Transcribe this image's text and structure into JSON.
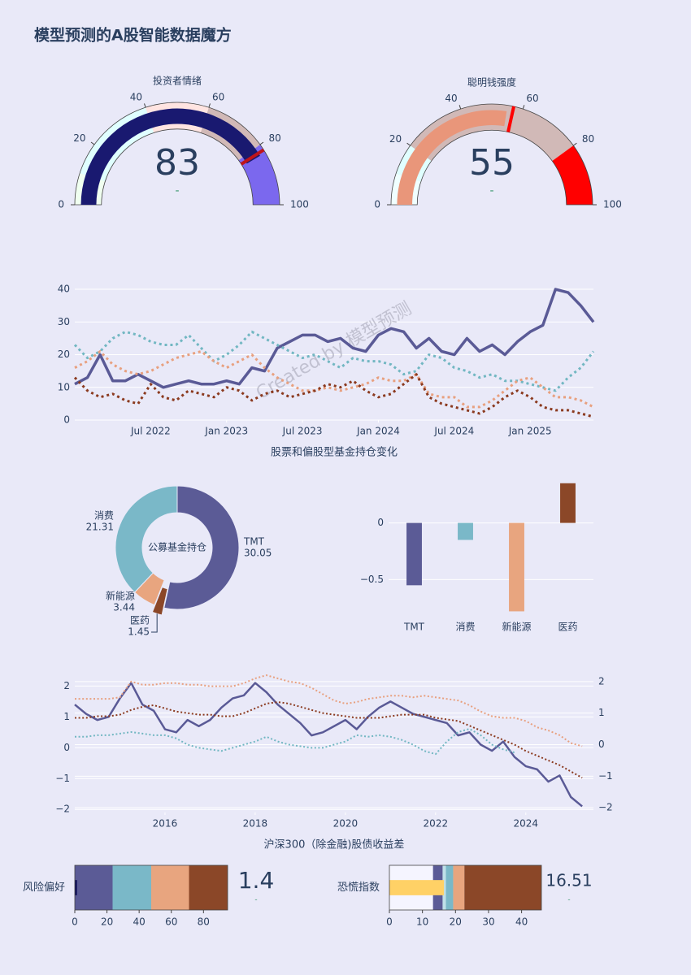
{
  "title": "模型预测的A股智能数据魔方",
  "chart_data": [
    {
      "type": "gauge",
      "title": "投资者情绪",
      "value": 83,
      "delta_label": "-",
      "range": [
        0,
        100
      ],
      "ticks": [
        0,
        20,
        40,
        60,
        80,
        100
      ],
      "bar_color": "#191970",
      "threshold": 82,
      "threshold_color": "#c0141a",
      "steps": [
        {
          "range": [
            0,
            10
          ],
          "color": "#f0fff0"
        },
        {
          "range": [
            10,
            40
          ],
          "color": "#e0ffff"
        },
        {
          "range": [
            40,
            60
          ],
          "color": "#ffe4e1"
        },
        {
          "range": [
            60,
            80
          ],
          "color": "#d1b9b7"
        },
        {
          "range": [
            80,
            100
          ],
          "color": "#7b68ee"
        }
      ]
    },
    {
      "type": "gauge",
      "title": "聪明钱强度",
      "value": 55,
      "delta_label": "-",
      "range": [
        0,
        100
      ],
      "ticks": [
        0,
        20,
        40,
        60,
        80,
        100
      ],
      "bar_color": "#e9967a",
      "threshold": 57,
      "threshold_color": "#ff0000",
      "steps": [
        {
          "range": [
            0,
            10
          ],
          "color": "#f0ffff"
        },
        {
          "range": [
            10,
            20
          ],
          "color": "#e0ffff"
        },
        {
          "range": [
            20,
            80
          ],
          "color": "#d1b9b7"
        },
        {
          "range": [
            80,
            100
          ],
          "color": "#ff0000"
        }
      ]
    },
    {
      "type": "line",
      "xlabel": "股票和偏股型基金持仓变化",
      "watermark": "Created by 模型预测",
      "grid": true,
      "x": [
        "2022-01",
        "2022-02",
        "2022-03",
        "2022-04",
        "2022-05",
        "2022-06",
        "2022-07",
        "2022-08",
        "2022-09",
        "2022-10",
        "2022-11",
        "2022-12",
        "2023-01",
        "2023-02",
        "2023-03",
        "2023-04",
        "2023-05",
        "2023-06",
        "2023-07",
        "2023-08",
        "2023-09",
        "2023-10",
        "2023-11",
        "2023-12",
        "2024-01",
        "2024-02",
        "2024-03",
        "2024-04",
        "2024-05",
        "2024-06",
        "2024-07",
        "2024-08",
        "2024-09",
        "2024-10",
        "2024-11",
        "2024-12",
        "2025-01",
        "2025-02",
        "2025-03",
        "2025-04",
        "2025-05",
        "2025-06"
      ],
      "xlim": [
        "2022-01",
        "2025-06"
      ],
      "xticks": [
        {
          "value": "2022-07",
          "label": "Jul 2022"
        },
        {
          "value": "2023-01",
          "label": "Jan 2023"
        },
        {
          "value": "2023-07",
          "label": "Jul 2023"
        },
        {
          "value": "2024-01",
          "label": "Jan 2024"
        },
        {
          "value": "2024-07",
          "label": "Jul 2024"
        },
        {
          "value": "2025-01",
          "label": "Jan 2025"
        }
      ],
      "ylim": [
        0,
        42
      ],
      "yticks": [
        0,
        10,
        20,
        30,
        40
      ],
      "series": [
        {
          "color": "#5a5a96",
          "dash": "solid",
          "width": 3.5,
          "values": [
            11,
            13,
            20,
            12,
            12,
            14,
            12,
            10,
            11,
            12,
            11,
            11,
            12,
            11,
            16,
            15,
            22,
            24,
            26,
            26,
            24,
            25,
            22,
            21,
            26,
            28,
            27,
            22,
            25,
            21,
            20,
            25,
            21,
            23,
            20,
            24,
            27,
            29,
            40,
            39,
            35,
            30
          ]
        },
        {
          "color": "#72b7c2",
          "dash": "dot",
          "width": 3,
          "values": [
            23,
            19,
            21,
            25,
            27,
            26,
            24,
            23,
            23,
            26,
            22,
            18,
            20,
            23,
            27,
            25,
            23,
            21,
            19,
            20,
            18,
            16,
            19,
            18,
            18,
            17,
            14,
            15,
            20,
            19,
            16,
            15,
            13,
            14,
            12,
            12,
            11,
            10,
            9,
            13,
            16,
            21
          ]
        },
        {
          "color": "#e8a07f",
          "dash": "dot",
          "width": 3,
          "values": [
            16,
            18,
            21,
            17,
            15,
            14,
            15,
            17,
            19,
            20,
            21,
            18,
            16,
            18,
            20,
            16,
            13,
            11,
            9,
            9,
            10,
            9,
            10,
            11,
            13,
            12,
            12,
            14,
            8,
            7,
            7,
            4,
            4,
            6,
            9,
            12,
            13,
            10,
            7,
            7,
            6,
            4
          ]
        },
        {
          "color": "#8b3a1f",
          "dash": "dot",
          "width": 3,
          "values": [
            13,
            9,
            7,
            8,
            6,
            5,
            11,
            7,
            6,
            9,
            8,
            7,
            10,
            9,
            6,
            8,
            9,
            7,
            8,
            9,
            11,
            10,
            12,
            9,
            7,
            8,
            11,
            14,
            7,
            5,
            4,
            3,
            2,
            4,
            7,
            9,
            7,
            4,
            3,
            3,
            2,
            1
          ]
        }
      ]
    },
    {
      "type": "pie",
      "hole_label": "公募基金持仓",
      "categories": [
        "TMT",
        "医药",
        "新能源",
        "消费"
      ],
      "values": [
        30.05,
        1.45,
        3.44,
        21.31
      ],
      "colors": [
        "#5b5b96",
        "#8b4728",
        "#e8a57f",
        "#7ab8c8"
      ],
      "pull": [
        0,
        0.12,
        0,
        0
      ]
    },
    {
      "type": "bar",
      "categories": [
        "TMT",
        "消费",
        "新能源",
        "医药"
      ],
      "values": [
        -0.55,
        -0.15,
        -0.78,
        0.35
      ],
      "colors": [
        "#5b5b96",
        "#7ab8c8",
        "#e8a57f",
        "#8b4728"
      ],
      "ylim": [
        -0.82,
        0.42
      ],
      "yticks": [
        {
          "value": -0.5,
          "label": "−0.5"
        },
        0
      ],
      "grid": true
    },
    {
      "type": "line",
      "xlabel": "沪深300（除金融)股债收益差",
      "grid": true,
      "x": [
        "2014-01",
        "2014-04",
        "2014-07",
        "2014-10",
        "2015-01",
        "2015-04",
        "2015-07",
        "2015-10",
        "2016-01",
        "2016-04",
        "2016-07",
        "2016-10",
        "2017-01",
        "2017-04",
        "2017-07",
        "2017-10",
        "2018-01",
        "2018-04",
        "2018-07",
        "2018-10",
        "2019-01",
        "2019-04",
        "2019-07",
        "2019-10",
        "2020-01",
        "2020-04",
        "2020-07",
        "2020-10",
        "2021-01",
        "2021-04",
        "2021-07",
        "2021-10",
        "2022-01",
        "2022-04",
        "2022-07",
        "2022-10",
        "2023-01",
        "2023-04",
        "2023-07",
        "2023-10",
        "2024-01",
        "2024-04",
        "2024-07",
        "2024-10",
        "2025-01",
        "2025-04"
      ],
      "xlim": [
        "2014-01",
        "2025-07"
      ],
      "xticks": [
        {
          "value": "2016-01",
          "label": "2016"
        },
        {
          "value": "2018-01",
          "label": "2018"
        },
        {
          "value": "2020-01",
          "label": "2020"
        },
        {
          "value": "2022-01",
          "label": "2022"
        },
        {
          "value": "2024-01",
          "label": "2024"
        }
      ],
      "ylim": [
        -2.1,
        2.3
      ],
      "yticks": [
        {
          "value": -2,
          "label": "−2"
        },
        {
          "value": -1,
          "label": "−1"
        },
        0,
        1,
        2
      ],
      "y2lim": [
        -2.15,
        2.15
      ],
      "y2ticks": [
        {
          "value": -2,
          "label": "−2"
        },
        {
          "value": -1,
          "label": "−1"
        },
        0,
        1,
        2
      ],
      "series": [
        {
          "color": "#5a5a96",
          "dash": "solid",
          "width": 2.5,
          "axis": "y",
          "values": [
            1.4,
            1.1,
            0.9,
            1.0,
            1.6,
            2.1,
            1.4,
            1.2,
            0.6,
            0.5,
            0.9,
            0.7,
            0.9,
            1.3,
            1.6,
            1.7,
            2.1,
            1.8,
            1.4,
            1.1,
            0.8,
            0.4,
            0.5,
            0.7,
            0.9,
            0.6,
            1.0,
            1.3,
            1.5,
            1.3,
            1.1,
            1.0,
            0.9,
            0.8,
            0.4,
            0.5,
            0.1,
            -0.1,
            0.2,
            -0.3,
            -0.6,
            -0.7,
            -1.1,
            -0.9,
            -1.6,
            -1.9
          ]
        },
        {
          "color": "#e8a07f",
          "dash": "dot",
          "width": 2,
          "axis": "y2",
          "values": [
            1.45,
            1.45,
            1.45,
            1.45,
            1.5,
            2.0,
            1.9,
            1.9,
            1.95,
            1.95,
            1.9,
            1.9,
            1.85,
            1.85,
            1.85,
            1.95,
            2.1,
            2.2,
            2.1,
            2.0,
            1.95,
            1.8,
            1.6,
            1.4,
            1.3,
            1.35,
            1.45,
            1.5,
            1.55,
            1.55,
            1.5,
            1.55,
            1.5,
            1.45,
            1.4,
            1.25,
            1.05,
            0.9,
            0.85,
            0.85,
            0.75,
            0.55,
            0.45,
            0.3,
            0.05,
            -0.05
          ]
        },
        {
          "color": "#8b3a1f",
          "dash": "dot",
          "width": 2,
          "axis": "y2",
          "values": [
            0.85,
            0.85,
            0.9,
            0.9,
            0.95,
            1.1,
            1.2,
            1.25,
            1.15,
            1.05,
            1.0,
            0.95,
            0.95,
            0.9,
            0.9,
            1.0,
            1.15,
            1.3,
            1.35,
            1.3,
            1.2,
            1.1,
            1.0,
            0.95,
            0.9,
            0.85,
            0.85,
            0.85,
            0.9,
            0.95,
            0.95,
            0.95,
            0.85,
            0.8,
            0.75,
            0.6,
            0.45,
            0.3,
            0.15,
            0.0,
            -0.2,
            -0.35,
            -0.5,
            -0.65,
            -0.85,
            -1.05
          ]
        },
        {
          "color": "#72b7c2",
          "dash": "dot",
          "width": 2,
          "axis": "y2",
          "values": [
            0.25,
            0.25,
            0.3,
            0.3,
            0.35,
            0.4,
            0.35,
            0.3,
            0.3,
            0.2,
            0.0,
            -0.1,
            -0.15,
            -0.2,
            -0.1,
            0.0,
            0.1,
            0.25,
            0.1,
            0.0,
            -0.05,
            -0.1,
            -0.1,
            0.0,
            0.1,
            0.3,
            0.25,
            0.3,
            0.25,
            0.15,
            0.0,
            -0.2,
            -0.3,
            0.1,
            0.4,
            0.5,
            0.3,
            0.0,
            -0.15,
            -0.25,
            null,
            null,
            null,
            null,
            null,
            null
          ]
        }
      ]
    },
    {
      "type": "bullet",
      "title": "风险偏好",
      "value": 1.4,
      "delta_label": "-",
      "range": [
        0,
        95
      ],
      "ticks": [
        0,
        20,
        40,
        60,
        80
      ],
      "bar_color": "#14145a",
      "steps": [
        {
          "range": [
            0,
            23.5
          ],
          "color": "#5b5b96"
        },
        {
          "range": [
            23.5,
            47.5
          ],
          "color": "#7ab8c8"
        },
        {
          "range": [
            47.5,
            71
          ],
          "color": "#e8a57f"
        },
        {
          "range": [
            71,
            95
          ],
          "color": "#8b4728"
        }
      ]
    },
    {
      "type": "bullet",
      "title": "恐慌指数",
      "value": 16.51,
      "delta_label": "-",
      "range": [
        0,
        46
      ],
      "ticks": [
        0,
        10,
        20,
        30,
        40
      ],
      "bar_color": "#ffd166",
      "steps": [
        {
          "range": [
            0,
            13.2
          ],
          "color": "#f5f5ff"
        },
        {
          "range": [
            13.2,
            16.1
          ],
          "color": "#5b5b96"
        },
        {
          "range": [
            16.1,
            17.1
          ],
          "color": "#bfe0e8"
        },
        {
          "range": [
            17.1,
            19.3
          ],
          "color": "#7ab8c8"
        },
        {
          "range": [
            19.3,
            22.7
          ],
          "color": "#e8a57f"
        },
        {
          "range": [
            22.7,
            46
          ],
          "color": "#8b4728"
        }
      ]
    }
  ]
}
